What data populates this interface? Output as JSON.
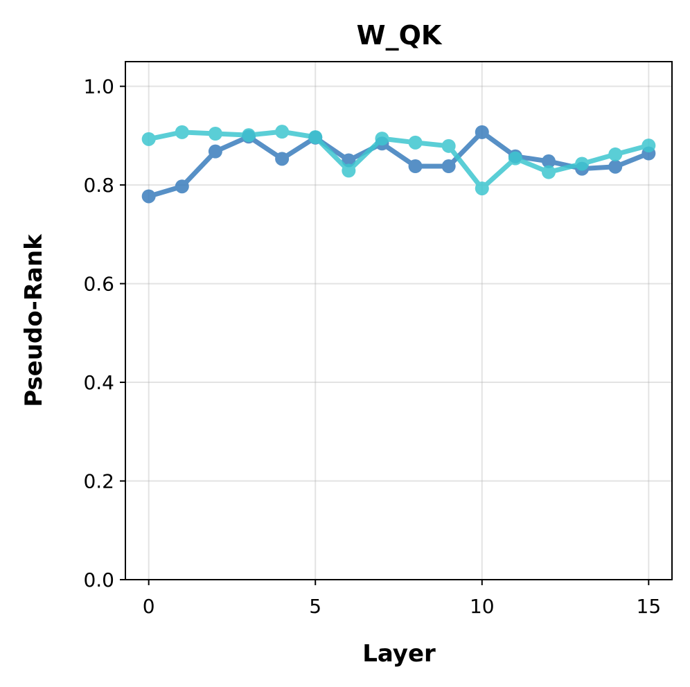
{
  "chart_data": {
    "type": "line",
    "title": "W_QK",
    "xlabel": "Layer",
    "ylabel": "Pseudo-Rank",
    "xlim": [
      -0.7,
      15.7
    ],
    "ylim": [
      0.0,
      1.05
    ],
    "xticks": [
      0,
      5,
      10,
      15
    ],
    "xtick_labels": [
      "0",
      "5",
      "10",
      "15"
    ],
    "yticks": [
      0.0,
      0.2,
      0.4,
      0.6,
      0.8,
      1.0
    ],
    "ytick_labels": [
      "0.0",
      "0.2",
      "0.4",
      "0.6",
      "0.8",
      "1.0"
    ],
    "grid": true,
    "x": [
      0,
      1,
      2,
      3,
      4,
      5,
      6,
      7,
      8,
      9,
      10,
      11,
      12,
      13,
      14,
      15
    ],
    "series": [
      {
        "color": "#3a7dbd",
        "values": [
          0.777,
          0.797,
          0.868,
          0.898,
          0.853,
          0.896,
          0.85,
          0.884,
          0.838,
          0.838,
          0.907,
          0.858,
          0.848,
          0.833,
          0.837,
          0.864
        ]
      },
      {
        "color": "#3ec6d0",
        "values": [
          0.893,
          0.907,
          0.904,
          0.901,
          0.908,
          0.897,
          0.829,
          0.894,
          0.886,
          0.879,
          0.793,
          0.854,
          0.826,
          0.843,
          0.862,
          0.88
        ]
      }
    ]
  }
}
